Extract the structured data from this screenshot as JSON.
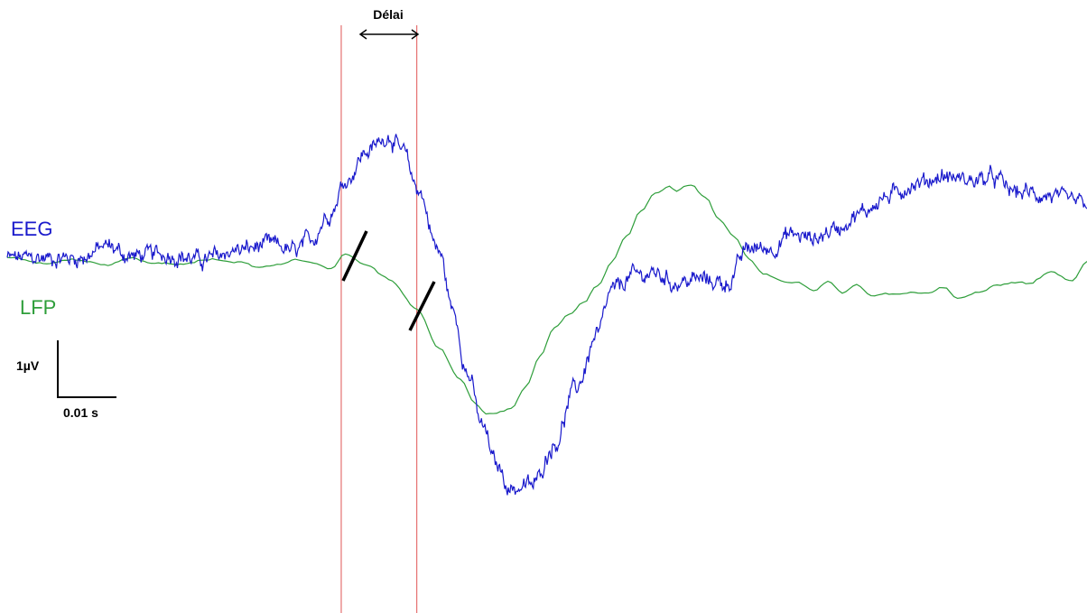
{
  "chart_data": {
    "type": "line",
    "title": "",
    "xlabel": "",
    "ylabel": "",
    "grid": false,
    "series": [
      {
        "name": "EEG",
        "color": "#1a1acc",
        "keypoints": [
          [
            0,
            0.2
          ],
          [
            10,
            0.2
          ],
          [
            14,
            0.8
          ],
          [
            17,
            0.3
          ],
          [
            22,
            0.4
          ],
          [
            27,
            0.1
          ],
          [
            32,
            0.6
          ],
          [
            37,
            0.9
          ],
          [
            40,
            0.5
          ],
          [
            42,
            1.1
          ],
          [
            45,
            2.6
          ],
          [
            47,
            4.2
          ],
          [
            50,
            5.7
          ],
          [
            53,
            6.5
          ],
          [
            55,
            5.6
          ],
          [
            57,
            3.8
          ],
          [
            60,
            0.5
          ],
          [
            62,
            -2.6
          ],
          [
            64,
            -5.8
          ],
          [
            66,
            -8.5
          ],
          [
            68,
            -10.5
          ],
          [
            70,
            -11.7
          ],
          [
            73,
            -11.5
          ],
          [
            76,
            -9.4
          ],
          [
            79,
            -6.5
          ],
          [
            82,
            -3.8
          ],
          [
            84,
            -1.5
          ],
          [
            87,
            -0.7
          ],
          [
            90,
            -0.6
          ],
          [
            93,
            -1.1
          ],
          [
            96,
            -0.9
          ],
          [
            100,
            -1.1
          ],
          [
            103,
            0.7
          ],
          [
            106,
            0.7
          ],
          [
            109,
            1.4
          ],
          [
            112,
            1.2
          ],
          [
            115,
            1.7
          ],
          [
            118,
            2.4
          ],
          [
            122,
            3.3
          ],
          [
            126,
            4.0
          ],
          [
            130,
            4.4
          ],
          [
            134,
            4.2
          ],
          [
            137,
            4.3
          ],
          [
            140,
            3.6
          ],
          [
            145,
            3.4
          ],
          [
            147,
            3.1
          ],
          [
            150,
            3.0
          ]
        ],
        "noise_amplitude": 0.35
      },
      {
        "name": "LFP",
        "color": "#2e9e3a",
        "keypoints": [
          [
            0,
            0.2
          ],
          [
            5,
            -0.1
          ],
          [
            10,
            0.1
          ],
          [
            14,
            -0.2
          ],
          [
            17,
            0.2
          ],
          [
            20,
            -0.1
          ],
          [
            24,
            -0.1
          ],
          [
            28,
            0.1
          ],
          [
            32,
            0.0
          ],
          [
            35,
            -0.3
          ],
          [
            38,
            -0.2
          ],
          [
            40,
            0.1
          ],
          [
            42,
            0.0
          ],
          [
            45,
            -0.3
          ],
          [
            47,
            0.4
          ],
          [
            50,
            -0.2
          ],
          [
            53,
            -0.9
          ],
          [
            57,
            -2.5
          ],
          [
            60,
            -4.5
          ],
          [
            63,
            -6.1
          ],
          [
            65,
            -7.3
          ],
          [
            66.5,
            -7.8
          ],
          [
            68,
            -7.8
          ],
          [
            70,
            -7.6
          ],
          [
            72,
            -6.5
          ],
          [
            74,
            -4.9
          ],
          [
            76,
            -3.4
          ],
          [
            78,
            -2.7
          ],
          [
            80,
            -2.1
          ],
          [
            82,
            -1.2
          ],
          [
            84,
            0.0
          ],
          [
            86,
            1.3
          ],
          [
            88,
            2.6
          ],
          [
            90,
            3.6
          ],
          [
            92,
            3.9
          ],
          [
            93,
            3.7
          ],
          [
            95,
            4.0
          ],
          [
            97,
            3.3
          ],
          [
            99,
            2.1
          ],
          [
            101,
            1.3
          ],
          [
            103,
            0.2
          ],
          [
            105,
            -0.6
          ],
          [
            108,
            -1.0
          ],
          [
            110,
            -1.1
          ],
          [
            112,
            -1.5
          ],
          [
            114,
            -1.0
          ],
          [
            116,
            -1.6
          ],
          [
            118,
            -1.2
          ],
          [
            120,
            -1.8
          ],
          [
            122,
            -1.7
          ],
          [
            125,
            -1.6
          ],
          [
            128,
            -1.6
          ],
          [
            130,
            -1.3
          ],
          [
            132,
            -1.9
          ],
          [
            135,
            -1.5
          ],
          [
            137,
            -1.2
          ],
          [
            140,
            -1.0
          ],
          [
            142,
            -1.1
          ],
          [
            145,
            -0.5
          ],
          [
            148,
            -1.0
          ],
          [
            150,
            0.0
          ]
        ],
        "noise_amplitude": 0.05
      }
    ],
    "x_domain_ms": [
      0,
      150
    ],
    "y_domain_uv": [
      -12.5,
      8.5
    ],
    "onset_markers_ms": [
      46.4,
      56.9
    ],
    "delay": {
      "label": "Délai",
      "start_ms": 46.4,
      "end_ms": 56.9
    },
    "scale_bar": {
      "amplitude_label": "1µV",
      "time_label": "0.01 s",
      "amplitude_uv": 1,
      "time_s": 0.01
    },
    "colors": {
      "eeg": "#1a1acc",
      "lfp": "#2e9e3a",
      "marker": "#e05555",
      "text": "#000000"
    }
  }
}
